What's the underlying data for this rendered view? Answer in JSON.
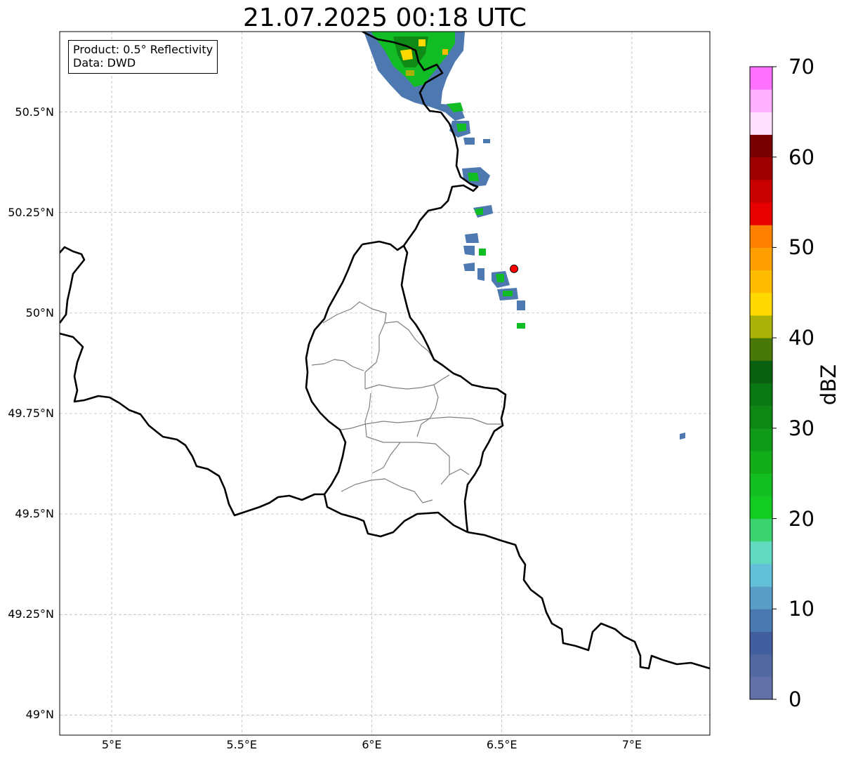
{
  "title": "21.07.2025 00:18 UTC",
  "info_box": {
    "product": "Product: 0.5° Reflectivity",
    "source": "Data: DWD"
  },
  "map": {
    "lon_range": [
      4.8,
      7.3
    ],
    "lat_range": [
      48.95,
      50.7
    ],
    "lat_ticks": [
      {
        "value": 49.0,
        "label": "49°N"
      },
      {
        "value": 49.25,
        "label": "49.25°N"
      },
      {
        "value": 49.5,
        "label": "49.5°N"
      },
      {
        "value": 49.75,
        "label": "49.75°N"
      },
      {
        "value": 50.0,
        "label": "50°N"
      },
      {
        "value": 50.25,
        "label": "50.25°N"
      },
      {
        "value": 50.5,
        "label": "50.5°N"
      }
    ],
    "lon_ticks": [
      {
        "value": 5.0,
        "label": "5°E"
      },
      {
        "value": 5.5,
        "label": "5.5°E"
      },
      {
        "value": 6.0,
        "label": "6°E"
      },
      {
        "value": 6.5,
        "label": "6.5°E"
      },
      {
        "value": 7.0,
        "label": "7°E"
      }
    ],
    "grid": true,
    "radar_site_marker": {
      "lon": 6.547,
      "lat": 50.11,
      "color": "#ff0000"
    }
  },
  "colorbar": {
    "label": "dBZ",
    "min": 0,
    "max": 70,
    "step": 2.5,
    "ticks": [
      0,
      10,
      20,
      30,
      40,
      50,
      60,
      70
    ],
    "colors": [
      "#6272a8",
      "#5268a0",
      "#425e9f",
      "#4a78b0",
      "#5a9ec8",
      "#62c0d8",
      "#62d8c0",
      "#3cd470",
      "#12cc22",
      "#12be20",
      "#12ac18",
      "#0f9a18",
      "#0e8814",
      "#0a7812",
      "#086010",
      "#487808",
      "#aab208",
      "#ffd800",
      "#ffbc00",
      "#ffa000",
      "#ff8000",
      "#e80000",
      "#c80000",
      "#a00000",
      "#780000",
      "#ffe0ff",
      "#ffb0ff",
      "#ff70ff",
      "#ee38ee"
    ]
  }
}
